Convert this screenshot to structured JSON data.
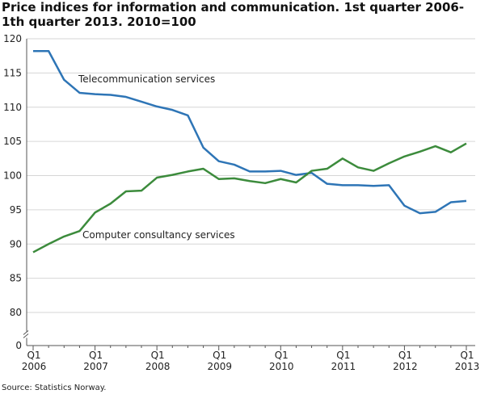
{
  "chart_data": {
    "type": "line",
    "title": [
      "Price indices for information and communication. 1st quarter 2006-",
      "1th quarter 2013. 2010=100"
    ],
    "source": "Source: Statistics Norway.",
    "categories": [
      [
        "Q1",
        "2006"
      ],
      null,
      null,
      null,
      [
        "Q1",
        "2007"
      ],
      null,
      null,
      null,
      [
        "Q1",
        "2008"
      ],
      null,
      null,
      null,
      [
        "Q1",
        "2009"
      ],
      null,
      null,
      null,
      [
        "Q1",
        "2010"
      ],
      null,
      null,
      null,
      [
        "Q1",
        "2011"
      ],
      null,
      null,
      null,
      [
        "Q1",
        "2012"
      ],
      null,
      null,
      null,
      [
        "Q1",
        "2013"
      ]
    ],
    "series": [
      {
        "name": "Telecommunication services",
        "color": "#2e75b6",
        "values": [
          118.2,
          118.2,
          114.0,
          112.1,
          111.9,
          111.8,
          111.5,
          110.8,
          110.1,
          109.6,
          108.8,
          104.1,
          102.1,
          101.6,
          100.6,
          100.6,
          100.7,
          100.1,
          100.4,
          98.8,
          98.6,
          98.6,
          98.5,
          98.6,
          95.6,
          94.5,
          94.7,
          96.1,
          96.3
        ]
      },
      {
        "name": "Computer consultancy services",
        "color": "#3c8b3c",
        "values": [
          88.8,
          90.0,
          91.1,
          91.9,
          94.6,
          95.9,
          97.7,
          97.8,
          99.7,
          100.1,
          100.6,
          101.0,
          99.5,
          99.6,
          99.2,
          98.9,
          99.5,
          99.0,
          100.7,
          101.0,
          102.5,
          101.2,
          100.7,
          101.8,
          102.8,
          103.5,
          104.3,
          103.4,
          104.7
        ]
      }
    ],
    "ylim": [
      0,
      120
    ],
    "yticks": [
      0,
      80,
      85,
      90,
      95,
      100,
      105,
      110,
      115,
      120
    ],
    "axis_break": [
      0,
      80
    ],
    "grid": true
  }
}
